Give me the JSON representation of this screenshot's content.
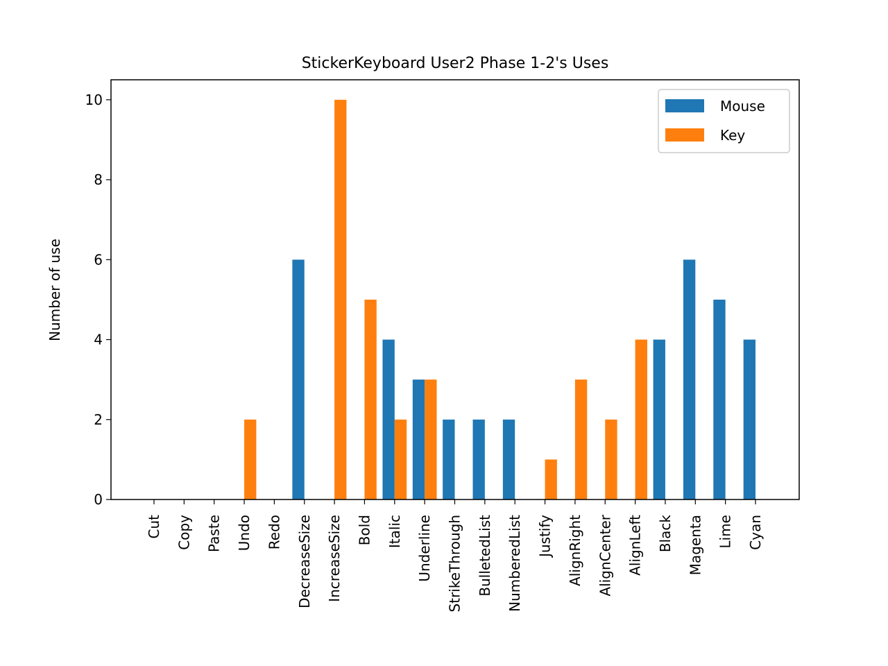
{
  "chart_data": {
    "type": "bar",
    "title": "StickerKeyboard User2 Phase 1-2's Uses",
    "xlabel": "",
    "ylabel": "Number of use",
    "ylim": [
      0,
      10.5
    ],
    "yticks": [
      "0",
      "2",
      "4",
      "6",
      "8",
      "10"
    ],
    "categories": [
      "Cut",
      "Copy",
      "Paste",
      "Undo",
      "Redo",
      "DecreaseSize",
      "IncreaseSize",
      "Bold",
      "Italic",
      "Underline",
      "StrikeThrough",
      "BulletedList",
      "NumberedList",
      "Justify",
      "AlignRight",
      "AlignCenter",
      "AlignLeft",
      "Black",
      "Magenta",
      "Lime",
      "Cyan"
    ],
    "series": [
      {
        "name": "Mouse",
        "color": "#1f77b4",
        "values": [
          0,
          0,
          0,
          0,
          0,
          6,
          0,
          0,
          4,
          3,
          2,
          2,
          2,
          0,
          0,
          0,
          0,
          4,
          6,
          5,
          4
        ]
      },
      {
        "name": "Key",
        "color": "#ff7f0e",
        "values": [
          0,
          0,
          0,
          2,
          0,
          0,
          10,
          5,
          2,
          3,
          0,
          0,
          0,
          1,
          3,
          2,
          4,
          0,
          0,
          0,
          0
        ]
      }
    ],
    "grid": false,
    "legend": "top-right"
  }
}
